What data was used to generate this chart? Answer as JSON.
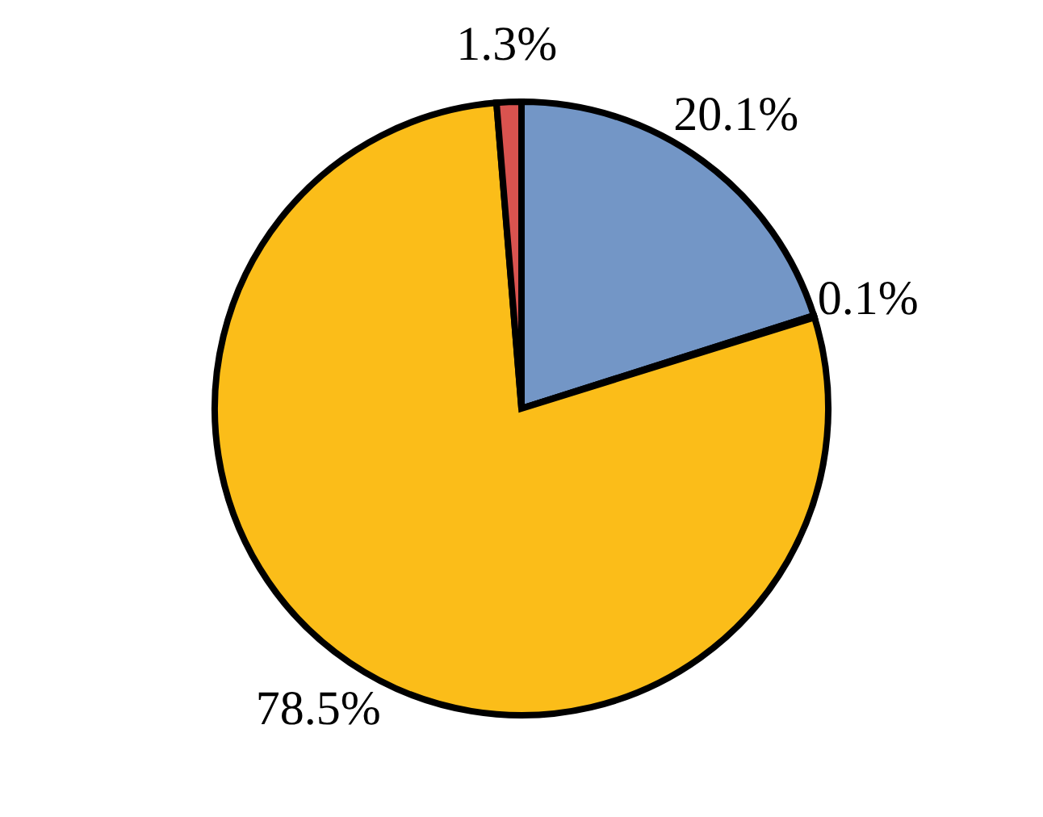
{
  "chart_data": {
    "type": "pie",
    "categories": [
      null,
      null,
      null,
      null
    ],
    "values": [
      20.1,
      0.1,
      78.5,
      1.3
    ],
    "colors": [
      "#7396c6",
      "#9a9a9a",
      "#fbbd19",
      "#d9534f"
    ],
    "value_labels": [
      "20.1%",
      "0.1%",
      "78.5%",
      "1.3%"
    ]
  }
}
